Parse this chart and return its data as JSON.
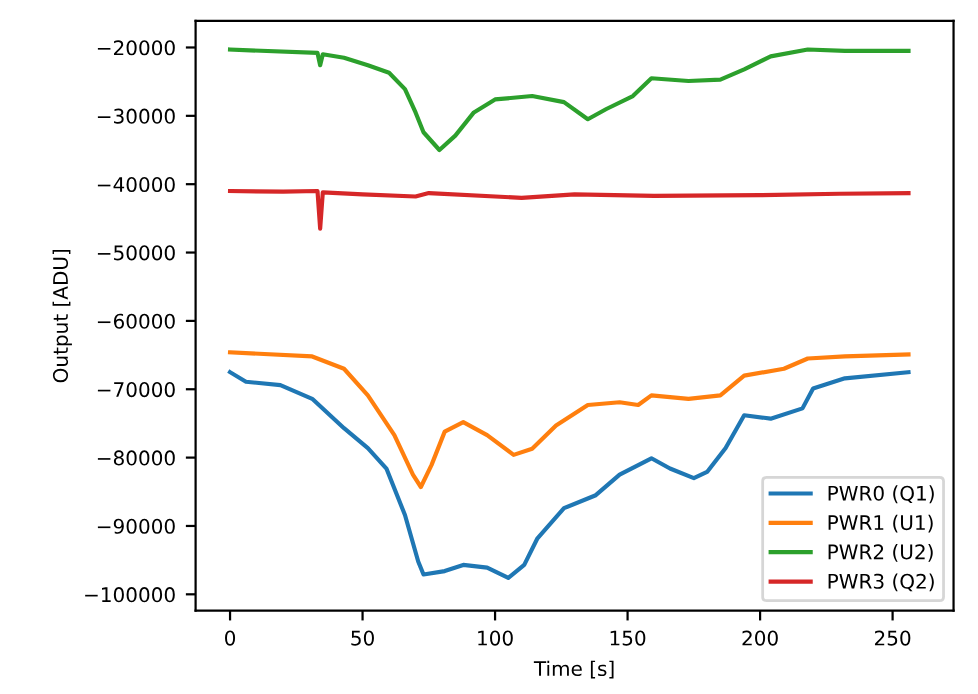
{
  "chart_data": {
    "type": "line",
    "xlabel": "Time [s]",
    "ylabel": "Output [ADU]",
    "xlim": [
      -13,
      273
    ],
    "ylim": [
      -102400,
      -16100
    ],
    "xticks": [
      0,
      50,
      100,
      150,
      200,
      250
    ],
    "yticks": [
      -100000,
      -90000,
      -80000,
      -70000,
      -60000,
      -50000,
      -40000,
      -30000,
      -20000
    ],
    "legend": "bottom right",
    "grid": false,
    "series": [
      {
        "name": "PWR0 (Q1)",
        "color": "#1f77b4",
        "x": [
          0,
          6,
          19,
          31,
          43,
          52,
          59,
          66,
          71,
          73,
          81,
          88,
          97,
          105,
          111,
          116,
          126,
          138,
          147,
          159,
          166,
          175,
          180,
          187,
          194,
          204,
          216,
          220,
          232,
          256
        ],
        "values": [
          -67500,
          -68900,
          -69400,
          -71400,
          -75700,
          -78600,
          -81600,
          -88400,
          -95200,
          -97100,
          -96600,
          -95700,
          -96100,
          -97600,
          -95700,
          -91800,
          -87400,
          -85500,
          -82500,
          -80100,
          -81600,
          -83000,
          -82100,
          -78600,
          -73800,
          -74300,
          -72800,
          -69900,
          -68400,
          -67500
        ]
      },
      {
        "name": "PWR1 (U1)",
        "color": "#ff7f0e",
        "x": [
          0,
          31,
          43,
          52,
          62,
          69,
          72,
          76,
          81,
          88,
          97,
          107,
          114,
          123,
          135,
          147,
          154,
          159,
          173,
          185,
          194,
          209,
          218,
          232,
          256
        ],
        "values": [
          -64600,
          -65200,
          -67000,
          -70900,
          -76700,
          -82500,
          -84300,
          -81100,
          -76200,
          -74800,
          -76700,
          -79600,
          -78700,
          -75300,
          -72300,
          -71900,
          -72300,
          -70900,
          -71400,
          -70900,
          -68000,
          -67000,
          -65500,
          -65200,
          -64900
        ]
      },
      {
        "name": "PWR2 (U2)",
        "color": "#2ca02c",
        "x": [
          0,
          33,
          34,
          35,
          43,
          52,
          60,
          66,
          70,
          73,
          79,
          85,
          92,
          100,
          114,
          126,
          135,
          142,
          152,
          159,
          173,
          185,
          194,
          204,
          218,
          232,
          256
        ],
        "values": [
          -20300,
          -20800,
          -22600,
          -21000,
          -21500,
          -22600,
          -23700,
          -26100,
          -29500,
          -32400,
          -35000,
          -32900,
          -29500,
          -27600,
          -27100,
          -28000,
          -30500,
          -29000,
          -27100,
          -24500,
          -24900,
          -24700,
          -23200,
          -21300,
          -20300,
          -20500,
          -20500
        ]
      },
      {
        "name": "PWR3 (Q2)",
        "color": "#d62728",
        "x": [
          0,
          20,
          33,
          34,
          35,
          50,
          70,
          75,
          110,
          130,
          160,
          200,
          230,
          256
        ],
        "values": [
          -41000,
          -41100,
          -41000,
          -46500,
          -41200,
          -41500,
          -41800,
          -41300,
          -42000,
          -41500,
          -41700,
          -41600,
          -41400,
          -41300
        ]
      }
    ]
  }
}
